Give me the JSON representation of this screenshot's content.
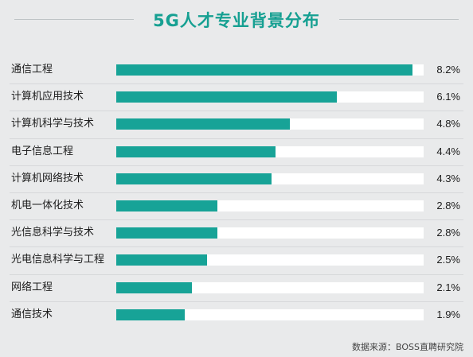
{
  "chart_data": {
    "type": "bar",
    "orientation": "horizontal",
    "title": "5G人才专业背景分布",
    "categories": [
      "通信工程",
      "计算机应用技术",
      "计算机科学与技术",
      "电子信息工程",
      "计算机网络技术",
      "机电一体化技术",
      "光信息科学与技术",
      "光电信息科学与工程",
      "网络工程",
      "通信技术"
    ],
    "values": [
      8.2,
      6.1,
      4.8,
      4.4,
      4.3,
      2.8,
      2.8,
      2.5,
      2.1,
      1.9
    ],
    "value_labels": [
      "8.2%",
      "6.1%",
      "4.8%",
      "4.4%",
      "4.3%",
      "2.8%",
      "2.8%",
      "2.5%",
      "2.1%",
      "1.9%"
    ],
    "xlim": [
      0,
      8.5
    ],
    "grid": false,
    "legend": "none",
    "colors": {
      "bar": "#17a397",
      "track": "#ffffff",
      "title": "#16a092"
    }
  },
  "source": "数据来源：BOSS直聘研究院"
}
